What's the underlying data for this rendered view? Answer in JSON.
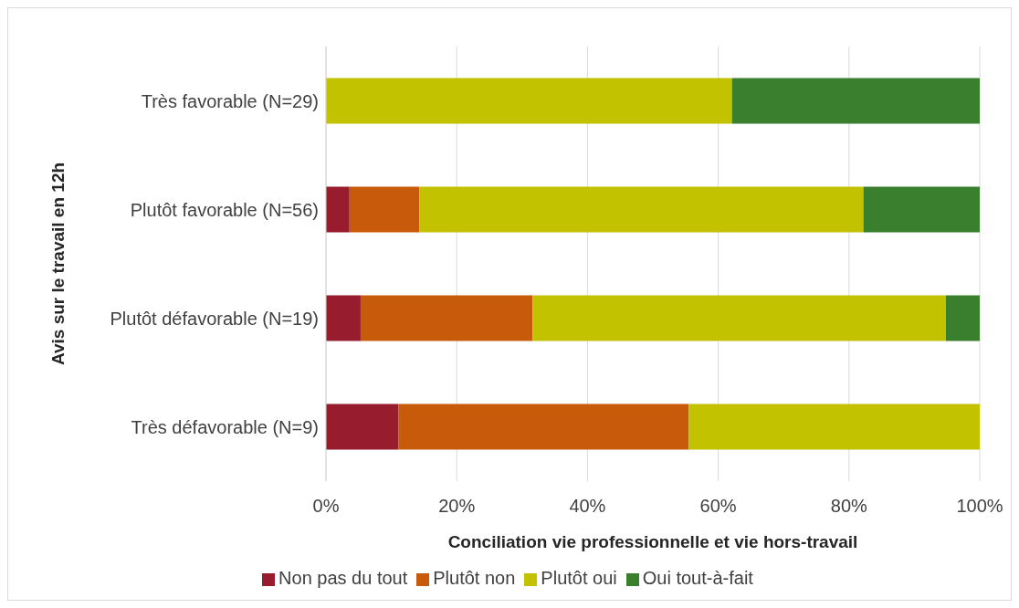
{
  "chart_data": {
    "type": "bar",
    "orientation": "horizontal",
    "stacked": true,
    "xlabel": "Conciliation vie professionnelle et vie hors-travail",
    "ylabel": "Avis sur le travail en 12h",
    "categories": [
      "Très favorable (N=29)",
      "Plutôt favorable (N=56)",
      "Plutôt défavorable (N=19)",
      "Très défavorable (N=9)"
    ],
    "series": [
      {
        "name": "Non pas du tout",
        "color": "#961c2e",
        "values": [
          0,
          3.6,
          5.3,
          11.1
        ]
      },
      {
        "name": "Plutôt non",
        "color": "#c85a0c",
        "values": [
          0,
          10.7,
          26.3,
          44.4
        ]
      },
      {
        "name": "Plutôt oui",
        "color": "#c2c200",
        "values": [
          62.1,
          67.9,
          63.2,
          44.5
        ]
      },
      {
        "name": "Oui tout-à-fait",
        "color": "#3a7f2e",
        "values": [
          37.9,
          17.8,
          5.2,
          0
        ]
      }
    ],
    "xlim": [
      0,
      100
    ],
    "xticks": [
      {
        "value": 0,
        "label": "0%"
      },
      {
        "value": 20,
        "label": "20%"
      },
      {
        "value": 40,
        "label": "40%"
      },
      {
        "value": 60,
        "label": "60%"
      },
      {
        "value": 80,
        "label": "80%"
      },
      {
        "value": 100,
        "label": "100%"
      }
    ],
    "grid": "x",
    "legend": "bottom"
  }
}
